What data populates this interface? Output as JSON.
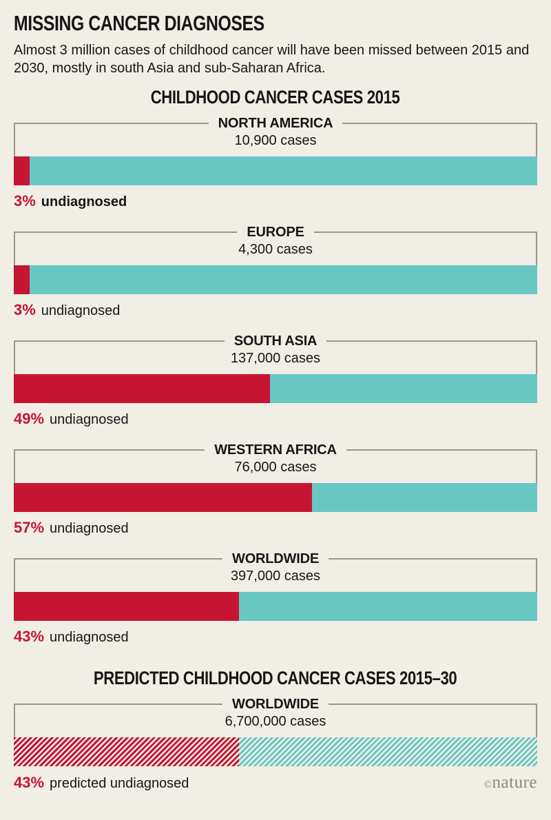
{
  "header": {
    "title": "MISSING CANCER DIAGNOSES",
    "subtitle": "Almost 3 million cases of childhood cancer will have been missed between 2015 and 2030, mostly in south Asia and sub-Saharan Africa."
  },
  "credit": {
    "symbol": "©",
    "text": "nature"
  },
  "colors": {
    "background": "#F1EEE6",
    "undiagnosed_red": "#C61532",
    "diagnosed_teal": "#69C7C3",
    "bracket_line_gray": "#9B9790",
    "credit_gray": "#8C8880",
    "text": "#161616"
  },
  "sections": [
    {
      "heading": "CHILDHOOD CANCER CASES 2015",
      "regions": [
        {
          "name": "NORTH AMERICA",
          "cases": "10,900 cases",
          "pct": "3%",
          "pct_value": 3,
          "label": "undiagnosed",
          "label_bold": true,
          "hatched": false
        },
        {
          "name": "EUROPE",
          "cases": "4,300 cases",
          "pct": "3%",
          "pct_value": 3,
          "label": "undiagnosed",
          "label_bold": false,
          "hatched": false
        },
        {
          "name": "SOUTH ASIA",
          "cases": "137,000 cases",
          "pct": "49%",
          "pct_value": 49,
          "label": "undiagnosed",
          "label_bold": false,
          "hatched": false
        },
        {
          "name": "WESTERN AFRICA",
          "cases": "76,000 cases",
          "pct": "57%",
          "pct_value": 57,
          "label": "undiagnosed",
          "label_bold": false,
          "hatched": false
        },
        {
          "name": "WORLDWIDE",
          "cases": "397,000 cases",
          "pct": "43%",
          "pct_value": 43,
          "label": "undiagnosed",
          "label_bold": false,
          "hatched": false
        }
      ]
    },
    {
      "heading": "PREDICTED CHILDHOOD CANCER CASES 2015–30",
      "regions": [
        {
          "name": "WORLDWIDE",
          "cases": "6,700,000 cases",
          "pct": "43%",
          "pct_value": 43,
          "label": "predicted undiagnosed",
          "label_bold": false,
          "hatched": true
        }
      ]
    }
  ],
  "chart_data": [
    {
      "type": "bar",
      "title": "CHILDHOOD CANCER CASES 2015",
      "orientation": "horizontal",
      "stacked": true,
      "categories": [
        "NORTH AMERICA",
        "EUROPE",
        "SOUTH ASIA",
        "WESTERN AFRICA",
        "WORLDWIDE"
      ],
      "total_cases": [
        10900,
        4300,
        137000,
        76000,
        397000
      ],
      "undiagnosed_percent": [
        3,
        3,
        49,
        57,
        43
      ],
      "series": [
        {
          "name": "Undiagnosed (%)",
          "values": [
            3,
            3,
            49,
            57,
            43
          ],
          "color": "#C61532"
        },
        {
          "name": "Diagnosed (%)",
          "values": [
            97,
            97,
            51,
            43,
            57
          ],
          "color": "#69C7C3"
        }
      ],
      "xlim": [
        0,
        100
      ],
      "grid": false,
      "legend": "none",
      "annotations": [
        "3% undiagnosed",
        "3% undiagnosed",
        "49% undiagnosed",
        "57% undiagnosed",
        "43% undiagnosed"
      ]
    },
    {
      "type": "bar",
      "title": "PREDICTED CHILDHOOD CANCER CASES 2015–30",
      "orientation": "horizontal",
      "stacked": true,
      "style": "hatched",
      "categories": [
        "WORLDWIDE"
      ],
      "total_cases": [
        6700000
      ],
      "undiagnosed_percent": [
        43
      ],
      "series": [
        {
          "name": "Predicted undiagnosed (%)",
          "values": [
            43
          ],
          "color": "#C61532"
        },
        {
          "name": "Predicted diagnosed (%)",
          "values": [
            57
          ],
          "color": "#69C7C3"
        }
      ],
      "xlim": [
        0,
        100
      ],
      "grid": false,
      "legend": "none",
      "annotations": [
        "43% predicted undiagnosed"
      ]
    }
  ]
}
